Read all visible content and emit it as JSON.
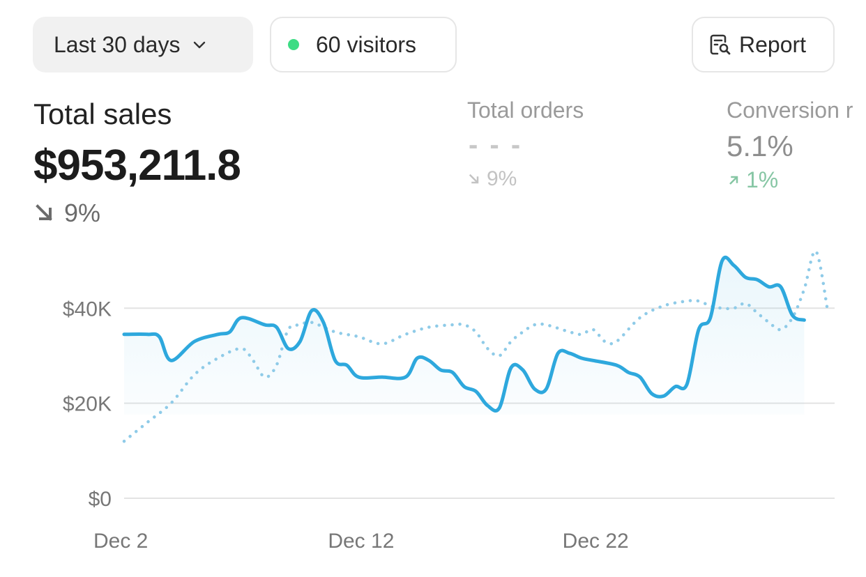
{
  "toolbar": {
    "range_label": "Last 30 days",
    "visitors_label": "60 visitors",
    "visitors_dot_color": "#3ddc84",
    "report_label": "Report"
  },
  "metrics": [
    {
      "label": "Total sales",
      "value": "$953,211.8",
      "change": "9%",
      "direction": "down"
    },
    {
      "label": "Total orders",
      "value": "- - -",
      "change": "9%",
      "direction": "down"
    },
    {
      "label": "Conversion r",
      "value": "5.1%",
      "change": "1%",
      "direction": "up"
    }
  ],
  "colors": {
    "primary_line": "#2ea8dd",
    "comparison_line": "#8fcbe8",
    "grid": "#e3e3e3"
  },
  "chart_data": {
    "type": "line",
    "title": "",
    "xlabel": "",
    "ylabel": "",
    "ylim": [
      0,
      55000
    ],
    "yticks": [
      "$0",
      "$20K",
      "$40K"
    ],
    "ytick_values": [
      0,
      20000,
      40000
    ],
    "xticks": [
      "Dec 2",
      "Dec 12",
      "Dec 22"
    ],
    "xtick_positions": [
      1,
      11,
      21
    ],
    "xlim": [
      1,
      31
    ],
    "series": [
      {
        "style": "solid",
        "x": [
          1,
          2,
          2.5,
          3,
          4,
          5,
          5.5,
          6,
          7,
          7.5,
          8,
          8.5,
          9,
          9.5,
          10,
          10.5,
          11,
          12,
          13,
          13.5,
          14,
          14.5,
          15,
          15.5,
          16,
          16.5,
          17,
          17.5,
          18,
          18.5,
          19,
          19.5,
          20,
          20.5,
          21,
          22,
          22.5,
          23,
          23.5,
          24,
          24.5,
          25,
          25.5,
          26,
          26.5,
          27,
          27.5,
          28,
          28.5,
          29,
          29.5,
          30
        ],
        "y": [
          34500,
          34500,
          34000,
          29000,
          33000,
          34500,
          35000,
          38000,
          36500,
          36000,
          31500,
          33000,
          39500,
          37000,
          29000,
          28000,
          25500,
          25500,
          25500,
          29500,
          29000,
          27000,
          26500,
          23500,
          22500,
          19500,
          19000,
          27500,
          27000,
          23000,
          23000,
          30500,
          30500,
          29500,
          29000,
          28000,
          26500,
          25500,
          22000,
          21500,
          23500,
          24000,
          35500,
          38000,
          50000,
          49000,
          46500,
          46000,
          44500,
          44500,
          38500,
          37500
        ]
      },
      {
        "style": "dotted",
        "x": [
          1,
          2,
          3,
          4,
          5,
          6,
          6.5,
          7,
          7.5,
          8,
          8.5,
          9,
          10,
          11,
          12,
          13,
          14,
          15,
          15.5,
          16,
          16.5,
          17,
          17.5,
          18,
          18.5,
          19,
          20,
          20.5,
          21,
          21.5,
          22,
          23,
          24,
          25,
          25.5,
          26,
          26.5,
          27,
          27.5,
          28,
          28.5,
          29,
          29.5,
          30,
          30.5,
          31
        ],
        "y": [
          12000,
          16000,
          20000,
          26000,
          29500,
          31500,
          29000,
          25500,
          28000,
          35500,
          36500,
          37000,
          35000,
          34000,
          32500,
          34500,
          36000,
          36500,
          36500,
          35000,
          31500,
          30000,
          33000,
          35000,
          36500,
          36500,
          35000,
          34500,
          35500,
          33000,
          33000,
          38000,
          40500,
          41500,
          41500,
          40500,
          40000,
          40000,
          41000,
          39000,
          37000,
          35500,
          38000,
          44000,
          52000,
          39500
        ]
      }
    ]
  }
}
